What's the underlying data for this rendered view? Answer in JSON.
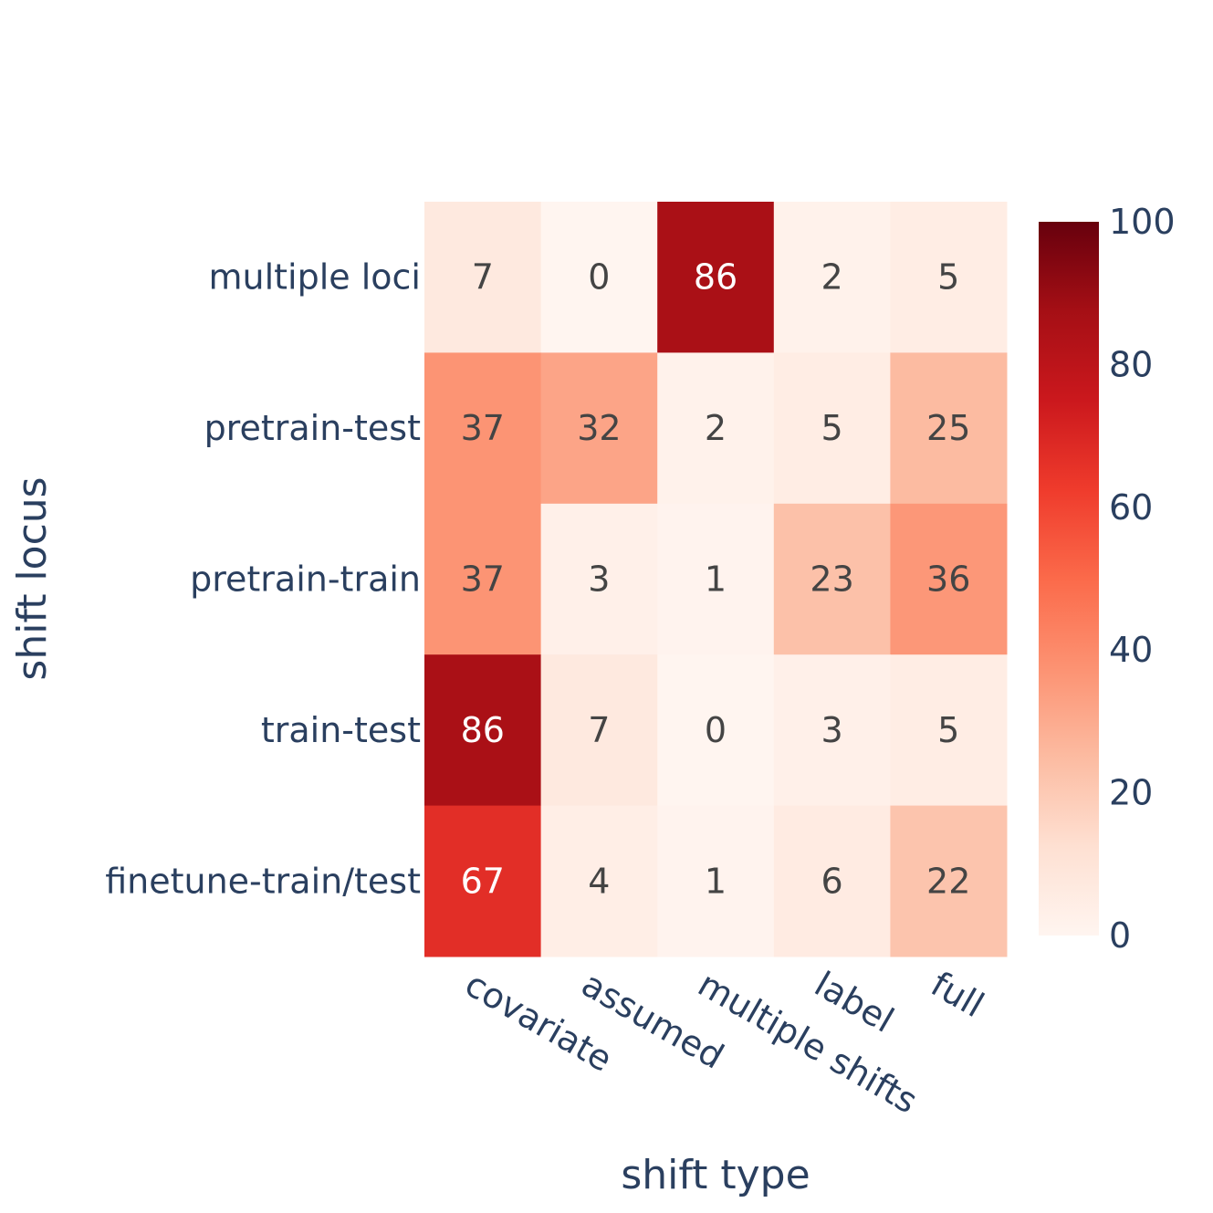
{
  "chart_data": {
    "type": "heatmap",
    "x_categories": [
      "covariate",
      "assumed",
      "multiple shifts",
      "label",
      "full"
    ],
    "y_categories": [
      "multiple loci",
      "pretrain-test",
      "pretrain-train",
      "train-test",
      "finetune-train/test"
    ],
    "values": [
      [
        7,
        0,
        86,
        2,
        5
      ],
      [
        37,
        32,
        2,
        5,
        25
      ],
      [
        37,
        3,
        1,
        23,
        36
      ],
      [
        86,
        7,
        0,
        3,
        5
      ],
      [
        67,
        4,
        1,
        6,
        22
      ]
    ],
    "xlabel": "shift type",
    "ylabel": "shift locus",
    "colorscale": "Reds",
    "zlim": [
      0,
      100
    ],
    "colorbar_ticks": [
      "0",
      "20",
      "40",
      "60",
      "80",
      "100"
    ],
    "colorbar_placement": "right"
  }
}
